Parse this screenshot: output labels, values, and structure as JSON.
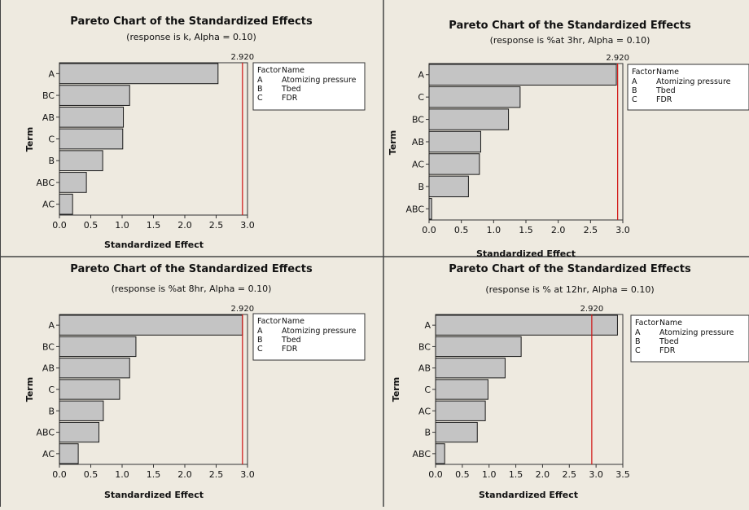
{
  "factor_legend": {
    "header_factor": "Factor",
    "header_name": "Name",
    "rows": [
      {
        "factor": "A",
        "name": "Atomizing pressure"
      },
      {
        "factor": "B",
        "name": "Tbed"
      },
      {
        "factor": "C",
        "name": "FDR"
      }
    ]
  },
  "chart_data": [
    {
      "type": "bar",
      "orientation": "horizontal",
      "title": "Pareto Chart of the Standardized Effects",
      "subtitle": "(response is k, Alpha = 0.10)",
      "xlabel": "Standardized Effect",
      "ylabel": "Term",
      "xlim": [
        0,
        3.0
      ],
      "ticks": [
        0.0,
        0.5,
        1.0,
        1.5,
        2.0,
        2.5,
        3.0
      ],
      "tick_labels": [
        "0.0",
        "0.5",
        "1.0",
        "1.5",
        "2.0",
        "2.5",
        "3.0"
      ],
      "reference_line": {
        "value": 2.92,
        "label": "2.920",
        "color": "#d01010"
      },
      "categories": [
        "A",
        "BC",
        "AB",
        "C",
        "B",
        "ABC",
        "AC"
      ],
      "values": [
        2.53,
        1.12,
        1.02,
        1.01,
        0.69,
        0.43,
        0.21
      ]
    },
    {
      "type": "bar",
      "orientation": "horizontal",
      "title": "Pareto Chart of the Standardized Effects",
      "subtitle": "(response is %at 3hr, Alpha = 0.10)",
      "xlabel": "Standardized Effect",
      "ylabel": "Term",
      "xlim": [
        0,
        3.0
      ],
      "ticks": [
        0.0,
        0.5,
        1.0,
        1.5,
        2.0,
        2.5,
        3.0
      ],
      "tick_labels": [
        "0.0",
        "0.5",
        "1.0",
        "1.5",
        "2.0",
        "2.5",
        "3.0"
      ],
      "reference_line": {
        "value": 2.92,
        "label": "2.920",
        "color": "#d01010"
      },
      "categories": [
        "A",
        "C",
        "BC",
        "AB",
        "AC",
        "B",
        "ABC"
      ],
      "values": [
        2.9,
        1.41,
        1.23,
        0.8,
        0.78,
        0.61,
        0.04
      ]
    },
    {
      "type": "bar",
      "orientation": "horizontal",
      "title": "Pareto Chart of the Standardized Effects",
      "subtitle": "(response is %at 8hr, Alpha = 0.10)",
      "xlabel": "Standardized Effect",
      "ylabel": "Term",
      "xlim": [
        0,
        3.0
      ],
      "ticks": [
        0.0,
        0.5,
        1.0,
        1.5,
        2.0,
        2.5,
        3.0
      ],
      "tick_labels": [
        "0.0",
        "0.5",
        "1.0",
        "1.5",
        "2.0",
        "2.5",
        "3.0"
      ],
      "reference_line": {
        "value": 2.92,
        "label": "2.920",
        "color": "#d01010"
      },
      "categories": [
        "A",
        "BC",
        "AB",
        "C",
        "B",
        "ABC",
        "AC"
      ],
      "values": [
        2.92,
        1.22,
        1.12,
        0.96,
        0.7,
        0.63,
        0.3
      ]
    },
    {
      "type": "bar",
      "orientation": "horizontal",
      "title": "Pareto Chart of the Standardized Effects",
      "subtitle": "(response is % at 12hr, Alpha = 0.10)",
      "xlabel": "Standardized Effect",
      "ylabel": "Term",
      "xlim": [
        0,
        3.5
      ],
      "ticks": [
        0.0,
        0.5,
        1.0,
        1.5,
        2.0,
        2.5,
        3.0,
        3.5
      ],
      "tick_labels": [
        "0.0",
        "0.5",
        "1.0",
        "1.5",
        "2.0",
        "2.5",
        "3.0",
        "3.5"
      ],
      "reference_line": {
        "value": 2.92,
        "label": "2.920",
        "color": "#d01010"
      },
      "categories": [
        "A",
        "BC",
        "AB",
        "C",
        "AC",
        "B",
        "ABC"
      ],
      "values": [
        3.4,
        1.6,
        1.3,
        0.98,
        0.93,
        0.78,
        0.17
      ]
    }
  ]
}
